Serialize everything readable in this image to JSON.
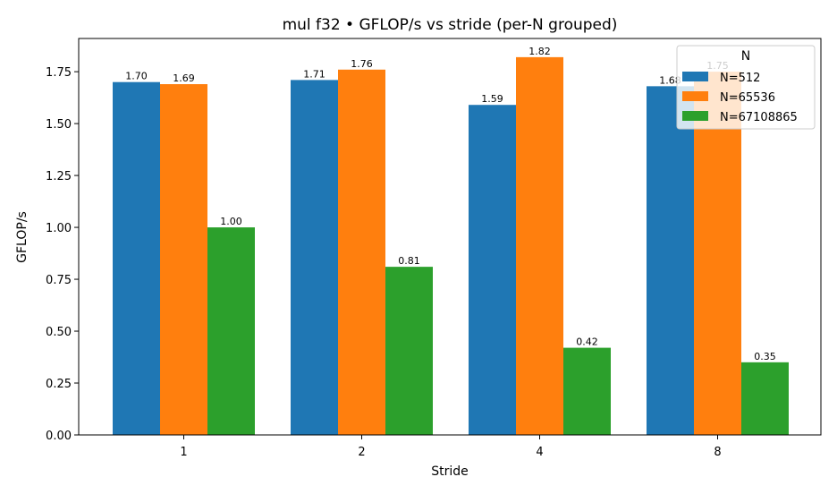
{
  "chart_data": {
    "type": "bar",
    "title": "mul f32 • GFLOP/s vs stride (per-N grouped)",
    "xlabel": "Stride",
    "ylabel": "GFLOP/s",
    "categories": [
      "1",
      "2",
      "4",
      "8"
    ],
    "series": [
      {
        "name": "N=512",
        "color": "#1f77b4",
        "values": [
          1.7,
          1.71,
          1.59,
          1.68
        ],
        "labels": [
          "1.70",
          "1.71",
          "1.59",
          "1.68"
        ]
      },
      {
        "name": "N=65536",
        "color": "#ff7f0e",
        "values": [
          1.69,
          1.76,
          1.82,
          1.75
        ],
        "labels": [
          "1.69",
          "1.76",
          "1.82",
          "1.75"
        ]
      },
      {
        "name": "N=67108865",
        "color": "#2ca02c",
        "values": [
          1.0,
          0.81,
          0.42,
          0.35
        ],
        "labels": [
          "1.00",
          "0.81",
          "0.42",
          "0.35"
        ]
      }
    ],
    "ylim": [
      0,
      1.91
    ],
    "yticks": [
      "0.00",
      "0.25",
      "0.50",
      "0.75",
      "1.00",
      "1.25",
      "1.50",
      "1.75"
    ],
    "grid": false,
    "legend": {
      "title": "N",
      "placement": "top-right"
    }
  }
}
